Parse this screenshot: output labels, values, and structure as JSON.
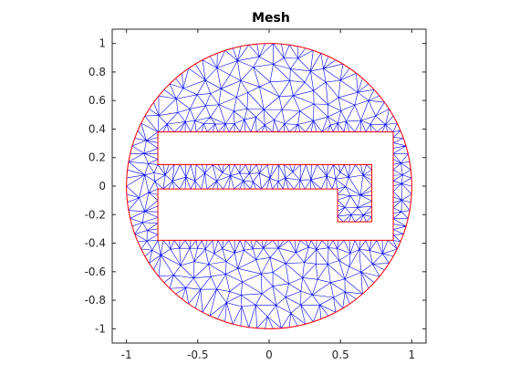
{
  "chart_data": {
    "type": "mesh",
    "title": "Mesh",
    "xlabel": "",
    "ylabel": "",
    "xlim": [
      -1.1,
      1.1
    ],
    "ylim": [
      -1.1,
      1.1
    ],
    "xticks": [
      -1,
      -0.5,
      0,
      0.5,
      1
    ],
    "xtick_labels": [
      "-1",
      "-0.5",
      "0",
      "0.5",
      "1"
    ],
    "yticks": [
      1,
      0.8,
      0.6,
      0.4,
      0.2,
      0,
      -0.2,
      -0.4,
      -0.6,
      -0.8,
      -1
    ],
    "ytick_labels": [
      "1",
      "0.8",
      "0.6",
      "0.4",
      "0.2",
      "0",
      "-0.2",
      "-0.4",
      "-0.6",
      "-0.8",
      "-1"
    ],
    "grid": false,
    "domain": {
      "circle": {
        "center": [
          0,
          0
        ],
        "radius": 1
      },
      "hole_polygon": [
        [
          -0.78,
          0.38
        ],
        [
          0.87,
          0.38
        ],
        [
          0.87,
          -0.38
        ],
        [
          -0.78,
          -0.38
        ],
        [
          -0.78,
          -0.02
        ],
        [
          0.48,
          -0.02
        ],
        [
          0.48,
          -0.25
        ],
        [
          0.72,
          -0.25
        ],
        [
          0.72,
          0.15
        ],
        [
          -0.78,
          0.15
        ]
      ]
    },
    "colors": {
      "mesh_edges": "#0000ff",
      "boundary": "#ff0000",
      "axes": "#262626"
    }
  }
}
